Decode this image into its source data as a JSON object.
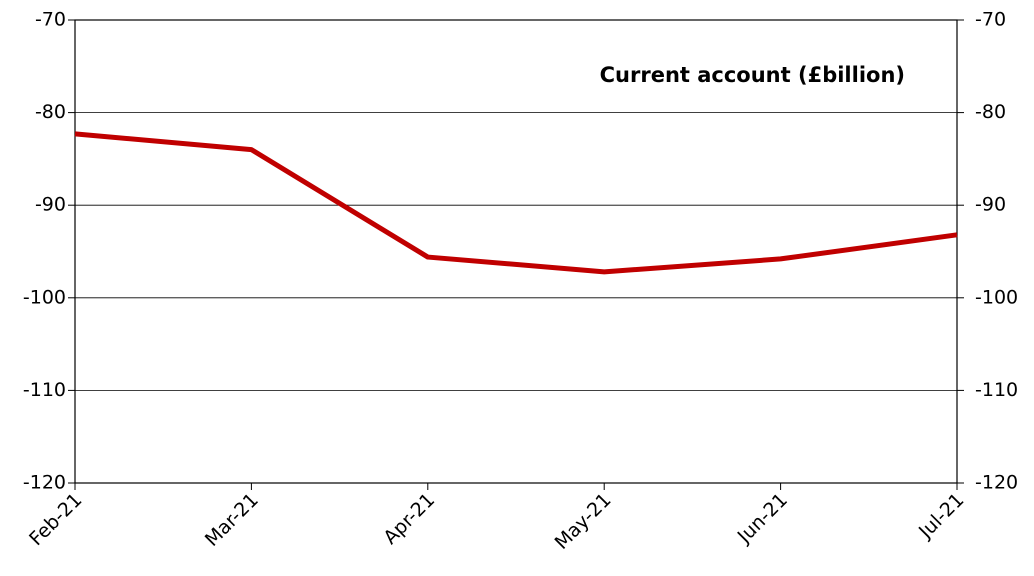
{
  "chart_data": {
    "type": "line",
    "title": "Current account (£billion)",
    "categories": [
      "Feb-21",
      "Mar-21",
      "Apr-21",
      "May-21",
      "Jun-21",
      "Jul-21"
    ],
    "series": [
      {
        "name": "Current account",
        "color": "#c00000",
        "values": [
          -82.3,
          -84.0,
          -95.6,
          -97.2,
          -95.8,
          -93.2
        ]
      }
    ],
    "ylim": [
      -120,
      -70
    ],
    "yticks": [
      -120,
      -110,
      -100,
      -90,
      -80,
      -70
    ],
    "y2lim": [
      -120,
      -70
    ],
    "y2ticks": [
      -120,
      -110,
      -100,
      -90,
      -80,
      -70
    ],
    "grid": true
  }
}
